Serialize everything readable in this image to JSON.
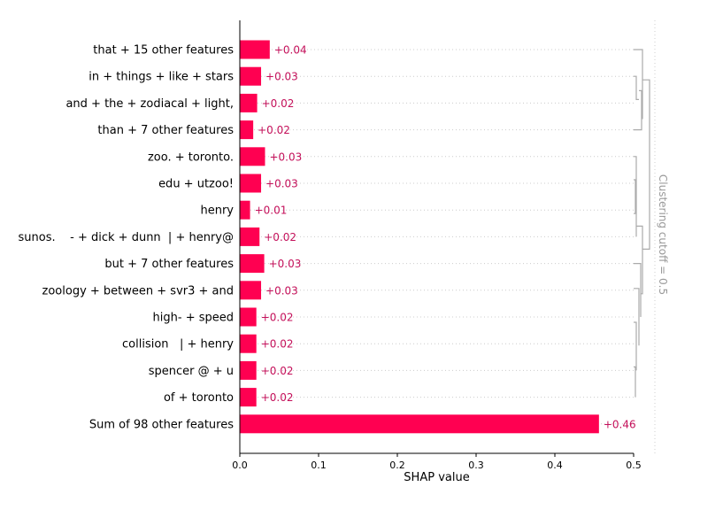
{
  "chart_data": {
    "type": "bar",
    "orientation": "horizontal",
    "categories": [
      "that + 15 other features",
      "in + things + like + stars",
      "and + the + zodiacal + light,",
      "than + 7 other features",
      "zoo. + toronto.",
      "edu + utzoo!",
      "henry",
      "sunos.    - + dick + dunn  | + henry@",
      "but + 7 other features",
      "zoology + between + svr3 + and",
      "high- + speed",
      "collision   | + henry",
      "spencer @ + u",
      "of + toronto",
      "Sum of 98 other features"
    ],
    "values": [
      0.038,
      0.027,
      0.022,
      0.017,
      0.032,
      0.027,
      0.013,
      0.025,
      0.031,
      0.027,
      0.021,
      0.021,
      0.021,
      0.021,
      0.456
    ],
    "value_labels": [
      "+0.04",
      "+0.03",
      "+0.02",
      "+0.02",
      "+0.03",
      "+0.03",
      "+0.01",
      "+0.02",
      "+0.03",
      "+0.03",
      "+0.02",
      "+0.02",
      "+0.02",
      "+0.02",
      "+0.46"
    ],
    "xlabel": "SHAP value",
    "xlim": [
      0,
      0.5
    ],
    "xticks": [
      0.0,
      0.1,
      0.2,
      0.3,
      0.4,
      0.5
    ],
    "xtick_labels": [
      "0.0",
      "0.1",
      "0.2",
      "0.3",
      "0.4",
      "0.5"
    ],
    "bar_color": "#ff0051",
    "label_color": "#c4105a",
    "grid": "horizontal dotted guide lines per row",
    "clustering": {
      "label": "Clustering cutoff = 0.5",
      "line_color": "#aaaaaa"
    }
  }
}
